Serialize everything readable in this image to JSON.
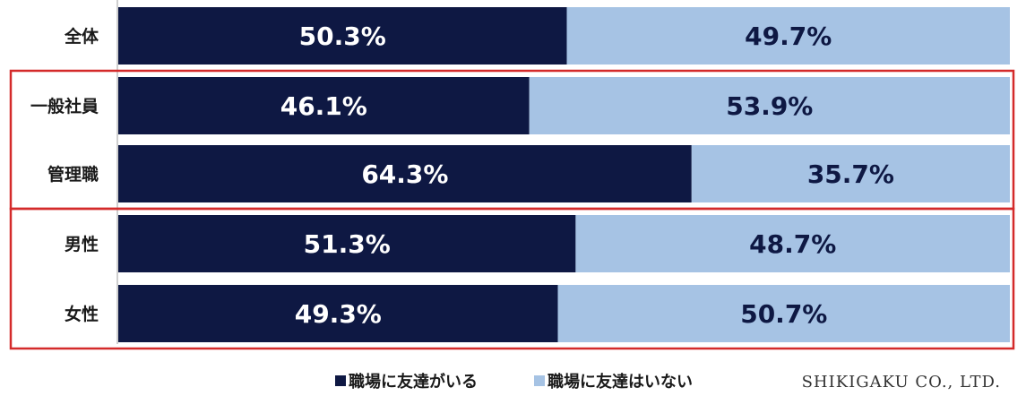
{
  "chart_data": {
    "type": "bar",
    "orientation": "horizontal",
    "stacked": true,
    "normalized_percent": true,
    "categories": [
      "全体",
      "一般社員",
      "管理職",
      "男性",
      "女性"
    ],
    "series": [
      {
        "name": "職場に友達がいる",
        "color": "#0e1843",
        "label_color": "#ffffff",
        "values": [
          50.3,
          46.1,
          64.3,
          51.3,
          49.3
        ],
        "labels": [
          "50.3%",
          "46.1%",
          "64.3%",
          "51.3%",
          "49.3%"
        ]
      },
      {
        "name": "職場に友達はいない",
        "color": "#a6c3e4",
        "label_color": "#0e1843",
        "values": [
          49.7,
          53.9,
          35.7,
          48.7,
          50.7
        ],
        "labels": [
          "49.7%",
          "53.9%",
          "35.7%",
          "48.7%",
          "50.7%"
        ]
      }
    ],
    "xlim": [
      0,
      100
    ],
    "grid": false,
    "legend_position": "bottom",
    "highlight_groups": [
      {
        "categories": [
          "一般社員",
          "管理職"
        ],
        "color": "#d42a2a"
      },
      {
        "categories": [
          "男性",
          "女性"
        ],
        "color": "#d42a2a"
      }
    ]
  },
  "legend": {
    "marker": "■"
  },
  "credit": "SHIKIGAKU CO., LTD."
}
